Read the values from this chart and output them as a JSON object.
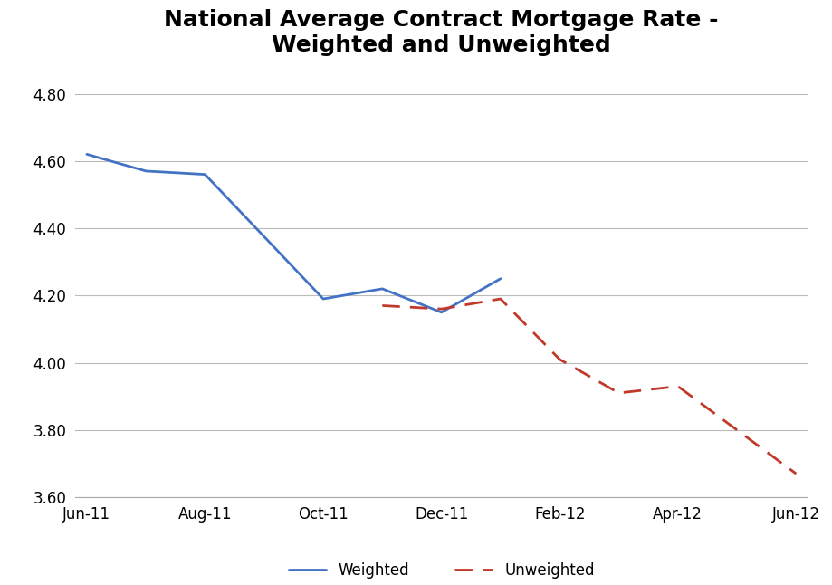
{
  "title": "National Average Contract Mortgage Rate -\nWeighted and Unweighted",
  "x_labels": [
    "Jun-11",
    "Aug-11",
    "Oct-11",
    "Dec-11",
    "Feb-12",
    "Apr-12",
    "Jun-12"
  ],
  "weighted_x": [
    0,
    1,
    2,
    4,
    5,
    6,
    7
  ],
  "weighted_y": [
    4.62,
    4.57,
    4.56,
    4.19,
    4.22,
    4.15,
    4.25
  ],
  "unweighted_x": [
    5,
    6,
    7,
    8,
    9,
    10,
    11,
    12
  ],
  "unweighted_y": [
    4.17,
    4.16,
    4.19,
    4.01,
    3.91,
    3.93,
    3.8,
    3.67
  ],
  "weighted_color": "#4472C4",
  "unweighted_color": "#C0392B",
  "ylim_min": 3.6,
  "ylim_max": 4.87,
  "yticks": [
    3.6,
    3.8,
    4.0,
    4.2,
    4.4,
    4.6,
    4.8
  ],
  "x_tick_positions": [
    0,
    2,
    4,
    6,
    8,
    10,
    12
  ],
  "xlim_min": -0.2,
  "xlim_max": 12.2,
  "background_color": "#FFFFFF",
  "plot_bg_color": "#FFFFFF",
  "title_fontsize": 18,
  "tick_fontsize": 12,
  "grid_color": "#BBBBBB",
  "border_color": "#AAAAAA"
}
